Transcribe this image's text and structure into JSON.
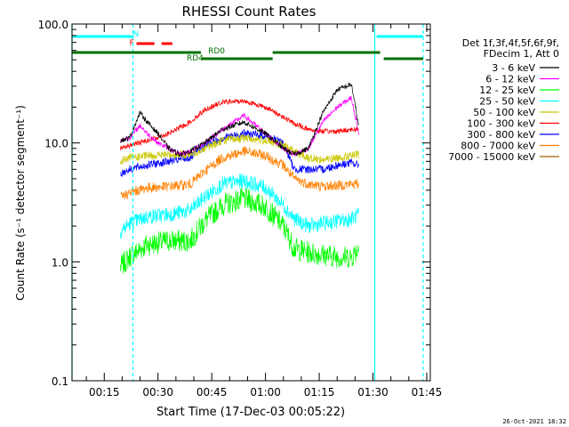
{
  "chart_data": {
    "type": "line",
    "title": "RHESSI Count Rates",
    "xlabel": "Start Time (17-Dec-03 00:05:22)",
    "ylabel": "Count Rate (s⁻¹ detector segment⁻¹)",
    "yscale": "log",
    "ylim": [
      0.1,
      100.0
    ],
    "xlim_min": [
      6,
      106
    ],
    "y_ticks": [
      "0.1",
      "1.0",
      "10.0",
      "100.0"
    ],
    "x_ticks": [
      {
        "min": 15,
        "label": "00:15"
      },
      {
        "min": 30,
        "label": "00:30"
      },
      {
        "min": 45,
        "label": "00:45"
      },
      {
        "min": 60,
        "label": "01:00"
      },
      {
        "min": 75,
        "label": "01:15"
      },
      {
        "min": 90,
        "label": "01:30"
      },
      {
        "min": 105,
        "label": "01:45"
      }
    ],
    "legend_header": [
      "Det 1f,3f,4f,5f,6f,9f,",
      "FDecim 1, Att 0"
    ],
    "series": [
      {
        "name": "3 - 6 keV",
        "color": "#000000",
        "times": [
          19.5,
          22,
          25,
          27,
          30,
          33,
          36,
          39,
          43,
          48,
          54,
          60,
          65,
          68,
          72,
          76,
          80,
          84,
          86
        ],
        "values": [
          10.5,
          11,
          18,
          15,
          12,
          9,
          8,
          8.5,
          10,
          13,
          15,
          12,
          9,
          8,
          9,
          18,
          28,
          31,
          14
        ]
      },
      {
        "name": "6 - 12 keV",
        "color": "#ff00ff",
        "times": [
          19.5,
          22,
          25,
          27,
          30,
          33,
          36,
          39,
          43,
          48,
          54,
          60,
          65,
          68,
          72,
          76,
          80,
          84,
          86
        ],
        "values": [
          10.5,
          11,
          14,
          12,
          10,
          9,
          8,
          8.5,
          10,
          13,
          17,
          12,
          9,
          8,
          9,
          15,
          20,
          24,
          12
        ]
      },
      {
        "name": "12 - 25 keV",
        "color": "#00ff00",
        "times": [
          19.5,
          22,
          27,
          33,
          39,
          43,
          48,
          54,
          60,
          65,
          68,
          72,
          76,
          80,
          84,
          86
        ],
        "values": [
          0.9,
          1.1,
          1.4,
          1.5,
          1.5,
          2.2,
          3.0,
          3.4,
          2.9,
          2.0,
          1.3,
          1.2,
          1.15,
          1.1,
          1.1,
          1.3
        ]
      },
      {
        "name": "25 - 50 keV",
        "color": "#00ffff",
        "times": [
          19.5,
          22,
          27,
          33,
          39,
          43,
          48,
          54,
          60,
          65,
          68,
          72,
          76,
          80,
          84,
          86
        ],
        "values": [
          1.8,
          2.1,
          2.4,
          2.5,
          2.7,
          3.5,
          4.5,
          4.8,
          4.2,
          3.0,
          2.3,
          2.0,
          2.1,
          2.2,
          2.3,
          2.5
        ]
      },
      {
        "name": "50 - 100 keV",
        "color": "#c8c800",
        "times": [
          19.5,
          22,
          27,
          33,
          39,
          43,
          48,
          54,
          60,
          65,
          68,
          72,
          76,
          80,
          84,
          86
        ],
        "values": [
          7.0,
          7.5,
          7.8,
          8.0,
          8.0,
          9.0,
          10.5,
          11.0,
          10.5,
          9.5,
          8.5,
          7.5,
          7.2,
          7.5,
          7.8,
          8.0
        ]
      },
      {
        "name": "100 - 300 keV",
        "color": "#ff0000",
        "times": [
          19.5,
          22,
          27,
          33,
          39,
          43,
          48,
          54,
          60,
          65,
          68,
          72,
          76,
          80,
          84,
          86
        ],
        "values": [
          9.0,
          9.5,
          10.5,
          12.0,
          15.0,
          19.0,
          22.0,
          22.5,
          20.0,
          16.5,
          14.5,
          13.0,
          12.5,
          12.5,
          13.0,
          13.0
        ]
      },
      {
        "name": "300 - 800 keV",
        "color": "#0000ff",
        "times": [
          19.5,
          22,
          27,
          33,
          39,
          43,
          48,
          54,
          60,
          65,
          68,
          72,
          76,
          80,
          84,
          86
        ],
        "values": [
          5.5,
          6.0,
          6.5,
          7.0,
          7.5,
          9.5,
          11.0,
          12.0,
          11.5,
          10.0,
          6.0,
          6.0,
          6.0,
          6.5,
          6.8,
          6.5
        ]
      },
      {
        "name": "800 - 7000 keV",
        "color": "#ff8000",
        "times": [
          19.5,
          22,
          27,
          33,
          39,
          43,
          48,
          54,
          60,
          65,
          68,
          72,
          76,
          80,
          84,
          86
        ],
        "values": [
          3.5,
          3.8,
          4.2,
          4.3,
          4.5,
          5.8,
          7.5,
          8.5,
          7.8,
          6.5,
          5.0,
          4.5,
          4.3,
          4.4,
          4.5,
          4.5
        ]
      },
      {
        "name": "7000 - 15000 keV",
        "color": "#a06000",
        "times": [],
        "values": []
      }
    ],
    "flags": [
      {
        "name": "N",
        "color": "#00ffff",
        "segments": [
          [
            6,
            23
          ],
          [
            91,
            104
          ]
        ],
        "label_at": 23
      },
      {
        "name": "F",
        "color": "#ff0000",
        "segments": [
          [
            24,
            29
          ],
          [
            31,
            34
          ]
        ],
        "label_at": 22
      },
      {
        "name": "RD0",
        "color": "#007000",
        "segments": [
          [
            6,
            42
          ],
          [
            62,
            92
          ]
        ],
        "label_at": 44
      },
      {
        "name": "RD4",
        "color": "#007000",
        "segments": [
          [
            42,
            62
          ],
          [
            93,
            104
          ]
        ],
        "label_at": 38
      }
    ],
    "vertical_lines": [
      {
        "min": 6,
        "color": "#00ffff",
        "dash": false
      },
      {
        "min": 23,
        "color": "#00ffff",
        "dash": true
      },
      {
        "min": 90.5,
        "color": "#00ffff",
        "dash": false
      },
      {
        "min": 104,
        "color": "#00ffff",
        "dash": true
      }
    ],
    "grid": false,
    "legend_position": "right"
  },
  "footer": {
    "timestamp": "26-Oct-2021 18:32"
  }
}
